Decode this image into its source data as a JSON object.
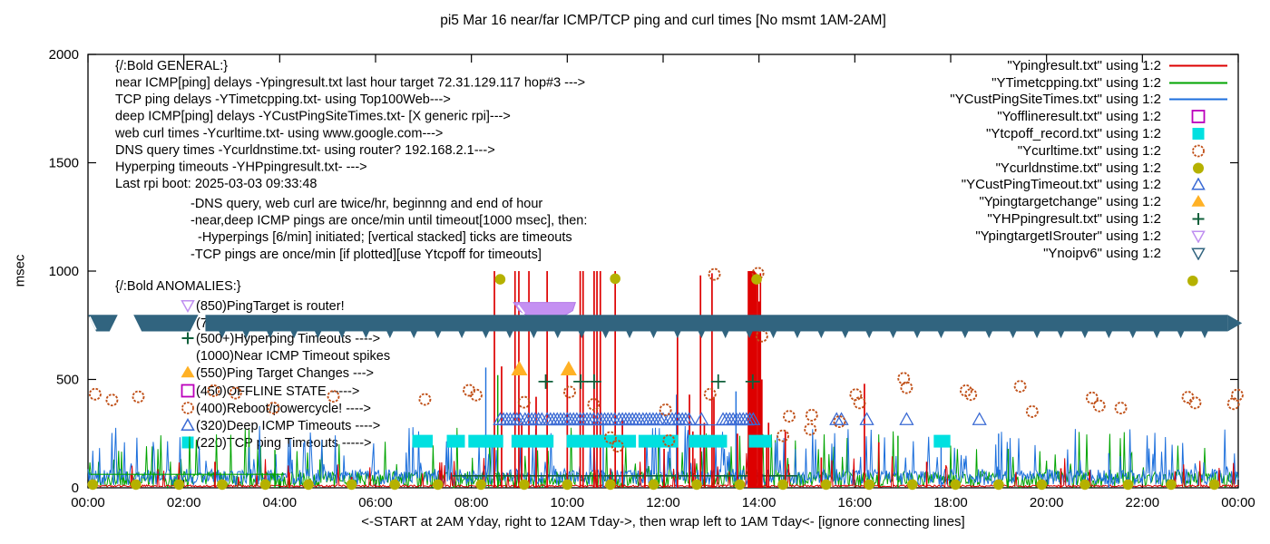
{
  "window": {
    "title": "pi5 Mar 16  near/far ICMP/TCP ping and curl times [No msmt 1AM-2AM]"
  },
  "chart_data": {
    "type": "line",
    "title": "pi5 Mar 16  near/far ICMP/TCP ping and curl times [No msmt 1AM-2AM]",
    "xlabel": "<-START at 2AM Yday, right to 12AM Tday->, then wrap left to 1AM Tday<- [ignore connecting lines]",
    "ylabel": "msec",
    "xlim_hours": [
      0,
      24
    ],
    "ylim": [
      0,
      2000
    ],
    "x_ticks": [
      "00:00",
      "02:00",
      "04:00",
      "06:00",
      "08:00",
      "10:00",
      "12:00",
      "14:00",
      "16:00",
      "18:00",
      "20:00",
      "22:00",
      "00:00"
    ],
    "y_ticks": [
      0,
      500,
      1000,
      1500,
      2000
    ],
    "grid": false,
    "legend_position": "top-right-inside",
    "colors": {
      "near_ping": "#dd0000",
      "tcp_ping": "#00a400",
      "deep_ping": "#1c6fdc",
      "offline": "#bb00bb",
      "tcpoff": "#00e0e0",
      "curl": "#c05018",
      "dns": "#b5b100",
      "deep_timeout": "#3a6ad4",
      "target_change": "#ffb125",
      "hyperping": "#10603b",
      "isrouter": "#bf8ff0",
      "noipv6": "#31647f"
    },
    "legend": [
      {
        "label": "\"Ypingresult.txt\" using 1:2",
        "marker": "line",
        "color": "#dd0000"
      },
      {
        "label": "\"YTimetcpping.txt\" using 1:2",
        "marker": "line",
        "color": "#00a400"
      },
      {
        "label": "\"YCustPingSiteTimes.txt\" using 1:2",
        "marker": "line",
        "color": "#1c6fdc"
      },
      {
        "label": "\"Yofflineresult.txt\" using 1:2",
        "marker": "square-open",
        "color": "#bb00bb"
      },
      {
        "label": "\"Ytcpoff_record.txt\" using 1:2",
        "marker": "square",
        "color": "#00e0e0"
      },
      {
        "label": "\"Ycurltime.txt\" using 1:2",
        "marker": "circle-open",
        "color": "#c05018"
      },
      {
        "label": "\"Ycurldnstime.txt\" using 1:2",
        "marker": "circle",
        "color": "#b5b100"
      },
      {
        "label": "\"YCustPingTimeout.txt\" using 1:2",
        "marker": "tri-up-open",
        "color": "#3a6ad4"
      },
      {
        "label": "\"Ypingtargetchange\" using 1:2",
        "marker": "tri-up",
        "color": "#ffb125"
      },
      {
        "label": "\"YHPpingresult.txt\" using 1:2",
        "marker": "plus",
        "color": "#10603b"
      },
      {
        "label": "\"YpingtargetISrouter\" using 1:2",
        "marker": "tri-down-open",
        "color": "#bf8ff0"
      },
      {
        "label": "\"Ynoipv6\" using 1:2",
        "marker": "tri-down-open",
        "color": "#31647f"
      }
    ],
    "annotations": {
      "general_header": "{/:Bold GENERAL:}",
      "general": [
        "near ICMP[ping] delays -Ypingresult.txt last hour target 72.31.129.117 hop#3 --->",
        "TCP ping delays -YTimetcpping.txt- using Top100Web--->",
        "deep ICMP[ping] delays -YCustPingSiteTimes.txt- [X generic rpi]--->",
        "web curl times -Ycurltime.txt- using www.google.com--->",
        "DNS query times -Ycurldnstime.txt- using router? 192.168.2.1--->",
        "Hyperping timeouts -YHPpingresult.txt- --->",
        "Last rpi boot: 2025-03-03 09:33:48"
      ],
      "general_indented": [
        "-DNS query, web curl are twice/hr, beginnng and end of hour",
        "-near,deep ICMP pings are once/min until timeout[1000 msec], then:",
        "-Hyperpings [6/min] initiated; [vertical stacked] ticks are timeouts",
        "-TCP pings are once/min [if plotted][use Ytcpoff for timeouts]"
      ],
      "anomalies_header": "{/:Bold ANOMALIES:}",
      "anomalies": [
        {
          "icon": "tri-down-open",
          "color": "#bf8ff0",
          "text": "(850)PingTarget is router!"
        },
        {
          "icon": "tri-down-open",
          "color": "#31647f",
          "text": "(765)No6 fallback ---->",
          "hidden_by_band": true
        },
        {
          "icon": "plus",
          "color": "#10603b",
          "text": "(500+)Hyperping Timeouts ---->"
        },
        {
          "icon": "none",
          "color": "",
          "text": "(1000)Near ICMP Timeout spikes"
        },
        {
          "icon": "tri-up",
          "color": "#ffb125",
          "text": "(550)Ping Target Changes --->"
        },
        {
          "icon": "square-open",
          "color": "#bb00bb",
          "text": "(450)OFFLINE STATE ----->"
        },
        {
          "icon": "circle-open",
          "color": "#c05018",
          "text": "(400)Reboot/powercycle! ---->"
        },
        {
          "icon": "tri-up-open",
          "color": "#3a6ad4",
          "text": "(320)Deep ICMP Timeouts ---->"
        },
        {
          "icon": "square",
          "color": "#00e0e0",
          "text": "(220)TCP ping Timeouts ----->"
        }
      ]
    },
    "series": {
      "red_impulses": [
        [
          0.9,
          60
        ],
        [
          2.65,
          120
        ],
        [
          4.2,
          70
        ],
        [
          5.5,
          50
        ],
        [
          8.48,
          1000
        ],
        [
          8.63,
          560
        ],
        [
          8.91,
          1000
        ],
        [
          8.99,
          1000
        ],
        [
          9.05,
          300
        ],
        [
          9.2,
          1000
        ],
        [
          9.35,
          420
        ],
        [
          9.58,
          1000
        ],
        [
          10.0,
          540
        ],
        [
          10.27,
          1000
        ],
        [
          10.33,
          1000
        ],
        [
          10.56,
          1000
        ],
        [
          10.62,
          1000
        ],
        [
          10.69,
          1000
        ],
        [
          11.0,
          1000
        ],
        [
          11.15,
          320
        ],
        [
          11.62,
          240
        ],
        [
          12.02,
          180
        ],
        [
          12.3,
          710
        ],
        [
          12.55,
          430
        ],
        [
          12.62,
          260
        ],
        [
          12.78,
          980
        ],
        [
          12.86,
          300
        ],
        [
          13.02,
          990
        ],
        [
          13.06,
          420
        ],
        [
          13.55,
          250
        ],
        [
          13.78,
          1000
        ],
        [
          13.8,
          1000
        ],
        [
          13.82,
          1000
        ],
        [
          13.84,
          1000
        ],
        [
          13.86,
          1000
        ],
        [
          13.88,
          1000
        ],
        [
          13.9,
          1000
        ],
        [
          13.92,
          995
        ],
        [
          13.94,
          990
        ],
        [
          13.97,
          985
        ],
        [
          14.0,
          860
        ],
        [
          14.03,
          990
        ],
        [
          14.06,
          500
        ],
        [
          14.16,
          240
        ],
        [
          14.2,
          300
        ],
        [
          14.55,
          260
        ],
        [
          15.3,
          140
        ],
        [
          16.2,
          480
        ],
        [
          16.5,
          210
        ],
        [
          17.5,
          120
        ],
        [
          20.3,
          90
        ]
      ],
      "blue_impulses": [
        [
          8.3,
          555
        ],
        [
          10.75,
          300
        ],
        [
          12.28,
          430
        ],
        [
          13.52,
          445
        ],
        [
          17.8,
          215
        ],
        [
          19.0,
          250
        ],
        [
          21.3,
          160
        ]
      ],
      "green_impulses": [
        [
          3.9,
          175
        ],
        [
          8.55,
          520
        ],
        [
          11.9,
          210
        ],
        [
          16.9,
          240
        ],
        [
          19.2,
          180
        ]
      ],
      "curl_circles": [
        [
          0.15,
          432
        ],
        [
          0.5,
          405
        ],
        [
          1.05,
          420
        ],
        [
          2.62,
          448
        ],
        [
          3.08,
          437
        ],
        [
          3.87,
          368
        ],
        [
          5.12,
          422
        ],
        [
          7.03,
          408
        ],
        [
          7.95,
          450
        ],
        [
          8.1,
          428
        ],
        [
          9.1,
          395
        ],
        [
          10.05,
          442
        ],
        [
          10.55,
          385
        ],
        [
          10.9,
          232
        ],
        [
          11.05,
          192
        ],
        [
          12.05,
          360
        ],
        [
          12.12,
          218
        ],
        [
          12.98,
          432
        ],
        [
          13.07,
          985
        ],
        [
          13.98,
          990
        ],
        [
          14.06,
          700
        ],
        [
          14.5,
          240
        ],
        [
          14.63,
          330
        ],
        [
          15.07,
          270
        ],
        [
          15.1,
          335
        ],
        [
          15.68,
          305
        ],
        [
          16.02,
          430
        ],
        [
          16.1,
          392
        ],
        [
          17.02,
          505
        ],
        [
          17.08,
          462
        ],
        [
          18.32,
          448
        ],
        [
          18.42,
          430
        ],
        [
          19.45,
          468
        ],
        [
          19.7,
          352
        ],
        [
          20.95,
          415
        ],
        [
          21.1,
          378
        ],
        [
          21.55,
          368
        ],
        [
          22.95,
          418
        ],
        [
          23.1,
          392
        ],
        [
          23.9,
          388
        ],
        [
          23.98,
          428
        ]
      ],
      "dns_dots_high": [
        [
          8.6,
          962
        ],
        [
          11.0,
          965
        ],
        [
          13.95,
          962
        ],
        [
          23.05,
          955
        ]
      ],
      "dns_dots_low": {
        "start": 0.1,
        "end": 23.9,
        "step": 0.9,
        "value": 15
      },
      "tcpoff_segments": {
        "value": 215,
        "ranges": [
          [
            6.88,
            7.08
          ],
          [
            7.6,
            7.75
          ],
          [
            8.05,
            8.3
          ],
          [
            8.38,
            8.55
          ],
          [
            8.95,
            9.6
          ],
          [
            10.1,
            10.62
          ],
          [
            10.72,
            11.32
          ],
          [
            11.6,
            12.2
          ],
          [
            12.65,
            13.22
          ],
          [
            13.9,
            14.15
          ],
          [
            17.76,
            17.88
          ]
        ]
      },
      "deep_timeouts": {
        "value": 315,
        "baseline": 290,
        "baseline_range": [
          8.6,
          13.9
        ],
        "ranges": [
          [
            8.6,
            9.05
          ],
          [
            9.12,
            9.5
          ],
          [
            9.58,
            10.0
          ],
          [
            10.06,
            10.58
          ],
          [
            10.64,
            11.02
          ],
          [
            11.08,
            11.52
          ],
          [
            11.58,
            12.05
          ],
          [
            12.12,
            12.6
          ],
          [
            13.25,
            13.9
          ]
        ],
        "singles": [
          12.8,
          15.62,
          15.72,
          16.25,
          17.08,
          18.6
        ]
      },
      "hyperping_pluses": {
        "value": 490,
        "times": [
          9.55,
          10.28,
          10.56,
          13.15,
          13.87
        ]
      },
      "hyperping_line": {
        "t1": 7.6,
        "t2": 14.8,
        "value": 55
      },
      "green_flat_line": {
        "t1": 0.05,
        "t2": 4.1,
        "value": 62
      },
      "target_changes": {
        "value": 548,
        "times": [
          9.0,
          10.03
        ]
      },
      "isrouter_band": {
        "t1": 8.88,
        "t2": 10.17,
        "v_top": 855,
        "v_bot": 795
      },
      "noipv6_band": {
        "v_top": 798,
        "v_bot": 722,
        "tip_v": 690,
        "left_pieces": [
          [
            0.0,
            0.62
          ],
          [
            0.95,
            2.3
          ]
        ],
        "main": [
          2.45,
          23.78
        ],
        "arrow_tip_t": 24.08,
        "tips_start": 2.8,
        "tips_end": 23.5,
        "tips_step": 0.5
      },
      "noise": {
        "seed": 123456789,
        "step_hours": 0.02,
        "blue": {
          "base_min": 12,
          "base_span": 75,
          "spike_prob": 0.1,
          "spike_min": 95,
          "spike_span": 190
        },
        "green": {
          "flat_prob": 0.45,
          "flat_base": 50,
          "flat_span": 25,
          "base_span": 45,
          "spike_prob": 0.07,
          "spike_min": 85,
          "spike_span": 200
        },
        "red": {
          "base_min": 4,
          "base_span": 9,
          "spike_prob": 0.03,
          "spike_min": 50,
          "spike_span": 110
        }
      }
    }
  }
}
